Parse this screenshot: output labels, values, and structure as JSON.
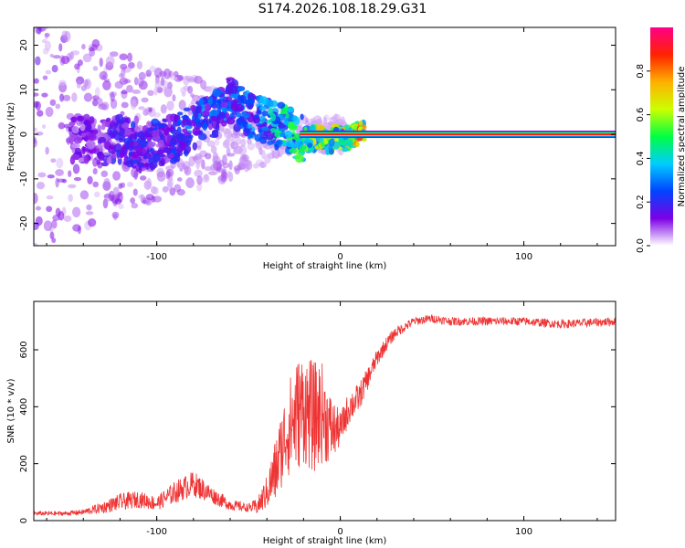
{
  "title": "S174.2026.108.18.29.G31",
  "chart_data": [
    {
      "type": "heatmap",
      "name": "spectrogram",
      "xlabel": "Height of straight line (km)",
      "ylabel": "Frequency (Hz)",
      "xlim": [
        -167,
        150
      ],
      "ylim": [
        -25,
        24
      ],
      "xticks": [
        -100,
        0,
        100
      ],
      "yticks": [
        -20,
        -10,
        0,
        10,
        20
      ],
      "colorbar": {
        "label": "Normalized spectral amplitude",
        "range": [
          0,
          1
        ],
        "ticks": [
          0.0,
          0.2,
          0.4,
          0.6,
          0.8
        ],
        "colors": [
          "#ffffff",
          "#7b00e6",
          "#0044ff",
          "#00ccff",
          "#00ff44",
          "#ccff00",
          "#ffb000",
          "#ff2200",
          "#ff0088"
        ]
      },
      "ridge": {
        "x": [
          -140,
          -130,
          -120,
          -110,
          -100,
          -90,
          -80,
          -70,
          -62,
          -55,
          -48,
          -40,
          -34,
          -28,
          -22,
          -16,
          -10,
          -6,
          -2,
          0,
          4,
          8,
          12,
          20,
          40,
          60,
          80,
          100,
          120,
          150
        ],
        "freq": [
          -1,
          -2,
          -1,
          -3,
          -2,
          -1,
          2,
          4,
          8,
          6,
          4,
          3,
          2,
          1,
          -1,
          -1,
          -1,
          -2,
          0,
          -1,
          -1,
          0,
          0,
          0,
          0,
          0,
          0,
          0,
          0,
          0
        ],
        "amplitude": [
          0.15,
          0.18,
          0.2,
          0.22,
          0.22,
          0.25,
          0.3,
          0.3,
          0.3,
          0.32,
          0.35,
          0.4,
          0.45,
          0.5,
          0.6,
          0.65,
          0.7,
          0.6,
          0.75,
          0.7,
          0.75,
          0.8,
          0.85,
          0.85,
          0.85,
          0.85,
          0.85,
          0.85,
          0.85,
          0.85
        ]
      }
    },
    {
      "type": "line",
      "name": "snr",
      "xlabel": "Height of straight line (km)",
      "ylabel": "SNR (10 * v/v)",
      "xlim": [
        -167,
        150
      ],
      "ylim": [
        0,
        770
      ],
      "xticks": [
        -100,
        0,
        100
      ],
      "yticks": [
        0,
        200,
        400,
        600
      ],
      "color": "#ee3333",
      "series": [
        {
          "name": "SNR",
          "x": [
            -167,
            -150,
            -140,
            -130,
            -120,
            -110,
            -100,
            -90,
            -80,
            -75,
            -70,
            -60,
            -50,
            -45,
            -40,
            -35,
            -30,
            -25,
            -20,
            -15,
            -10,
            -5,
            0,
            5,
            10,
            15,
            20,
            25,
            30,
            40,
            50,
            60,
            80,
            100,
            120,
            150
          ],
          "y": [
            25,
            25,
            30,
            45,
            65,
            75,
            60,
            100,
            130,
            110,
            90,
            55,
            45,
            50,
            100,
            180,
            300,
            360,
            400,
            360,
            380,
            320,
            320,
            400,
            430,
            500,
            570,
            620,
            660,
            700,
            710,
            700,
            700,
            700,
            690,
            700
          ],
          "noise": [
            8,
            8,
            10,
            20,
            30,
            30,
            25,
            40,
            45,
            40,
            30,
            20,
            15,
            30,
            60,
            120,
            150,
            200,
            200,
            200,
            180,
            120,
            60,
            60,
            50,
            40,
            30,
            25,
            20,
            15,
            15,
            15,
            15,
            15,
            15,
            15
          ]
        }
      ]
    }
  ]
}
